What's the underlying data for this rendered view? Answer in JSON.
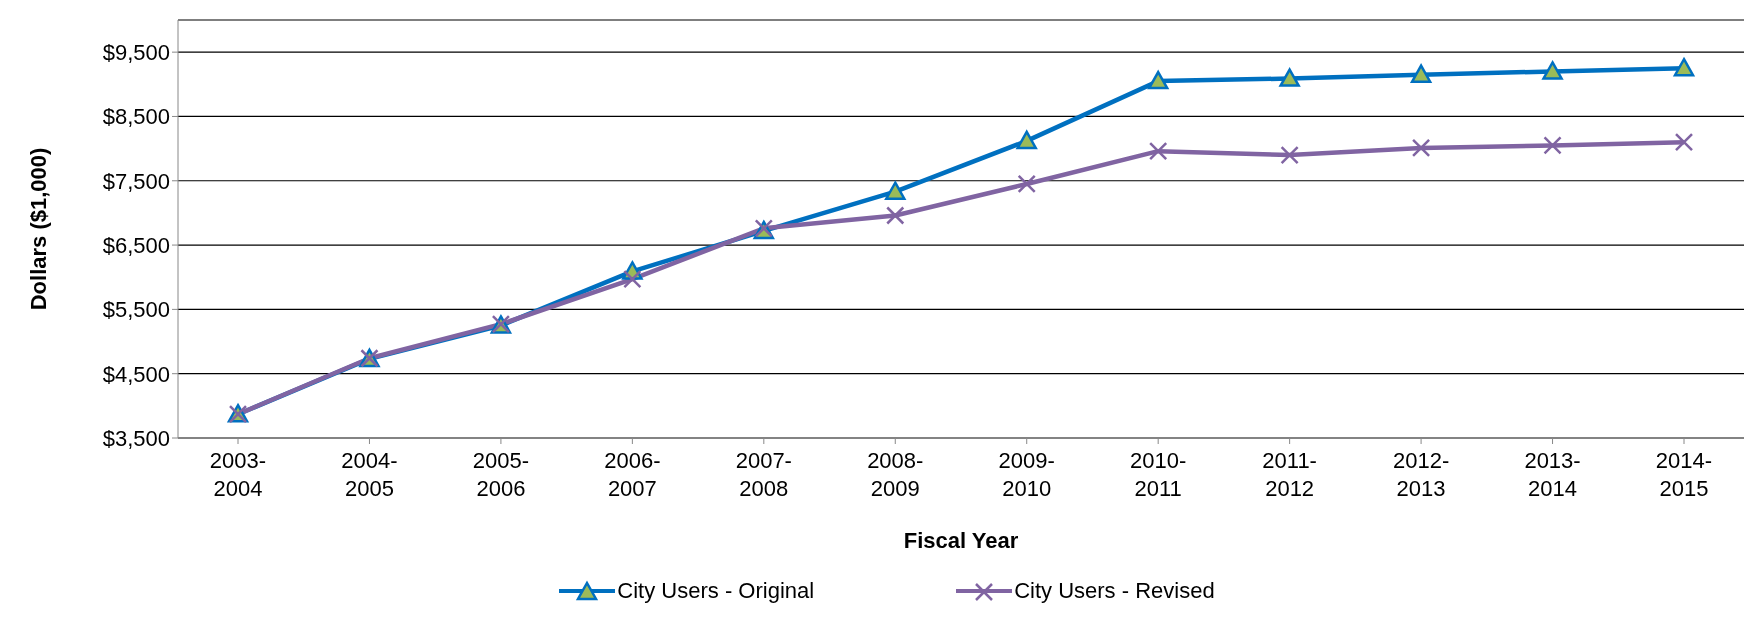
{
  "chart_data": {
    "type": "line",
    "xlabel": "Fiscal Year",
    "ylabel": "Dollars ($1,000)",
    "categories": [
      "2003-\n2004",
      "2004-\n2005",
      "2005-\n2006",
      "2006-\n2007",
      "2007-\n2008",
      "2008-\n2009",
      "2009-\n2010",
      "2010-\n2011",
      "2011-\n2012",
      "2012-\n2013",
      "2013-\n2014",
      "2014-\n2015"
    ],
    "series": [
      {
        "name": "City Users - Original",
        "color": "#0070c0",
        "marker": "triangle",
        "values": [
          3870,
          4730,
          5250,
          6090,
          6720,
          7330,
          8120,
          9050,
          9090,
          9150,
          9200,
          9250
        ]
      },
      {
        "name": "City Users - Revised",
        "color": "#8064a2",
        "marker": "cross",
        "values": [
          3870,
          4740,
          5270,
          5970,
          6760,
          6960,
          7450,
          7960,
          7900,
          8010,
          8050,
          8100
        ]
      }
    ],
    "ylim": [
      3500,
      10000
    ],
    "yticks": [
      {
        "value": 3500,
        "label": "$3,500"
      },
      {
        "value": 4500,
        "label": "$4,500"
      },
      {
        "value": 5500,
        "label": "$5,500"
      },
      {
        "value": 6500,
        "label": "$6,500"
      },
      {
        "value": 7500,
        "label": "$7,500"
      },
      {
        "value": 8500,
        "label": "$8,500"
      },
      {
        "value": 9500,
        "label": "$9,500"
      }
    ],
    "grid": "y",
    "legend": "bottom"
  }
}
